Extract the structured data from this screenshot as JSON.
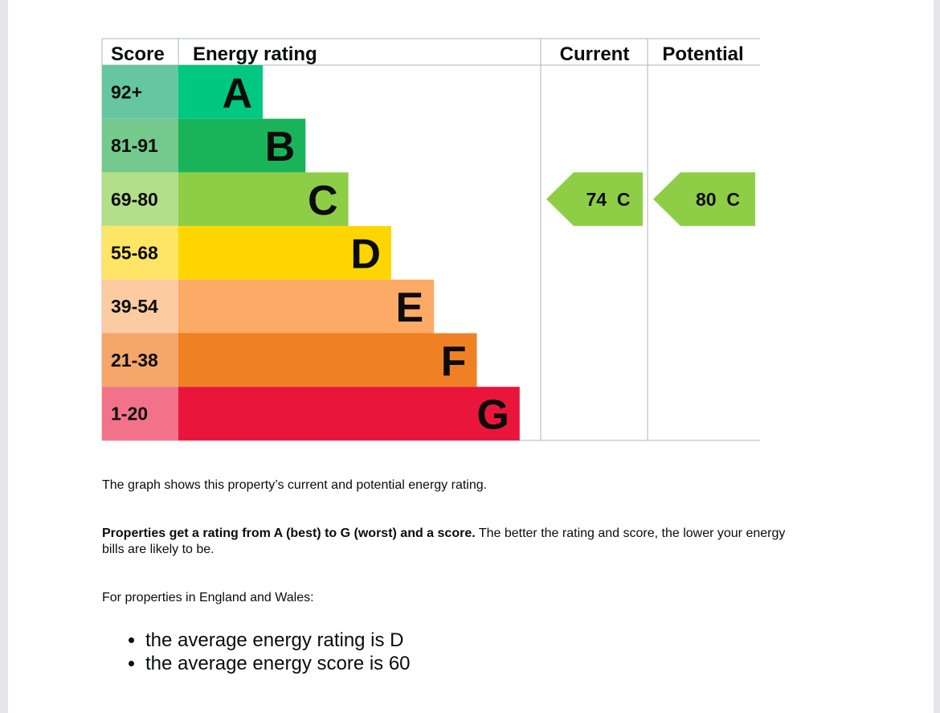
{
  "chart_data": {
    "type": "bar",
    "headers": {
      "score": "Score",
      "rating": "Energy rating",
      "current": "Current",
      "potential": "Potential"
    },
    "bands": [
      {
        "letter": "A",
        "range": "92+",
        "color": "#00c781",
        "score_bg": "#66c6a1"
      },
      {
        "letter": "B",
        "range": "81-91",
        "color": "#19b459",
        "score_bg": "#74c98d"
      },
      {
        "letter": "C",
        "range": "69-80",
        "color": "#8dce46",
        "score_bg": "#b3df8b"
      },
      {
        "letter": "D",
        "range": "55-68",
        "color": "#ffd500",
        "score_bg": "#ffe566"
      },
      {
        "letter": "E",
        "range": "39-54",
        "color": "#fcaa65",
        "score_bg": "#fdcba1"
      },
      {
        "letter": "F",
        "range": "21-38",
        "color": "#ef8023",
        "score_bg": "#f4a66b"
      },
      {
        "letter": "G",
        "range": "1-20",
        "color": "#e9153b",
        "score_bg": "#f27389"
      }
    ],
    "current": {
      "score": 74,
      "band": "C",
      "label": "74  C"
    },
    "potential": {
      "score": 80,
      "band": "C",
      "label": "80  C"
    }
  },
  "text": {
    "graph_description": "The graph shows this property’s current and potential energy rating.",
    "rating_bold": "Properties get a rating from A (best) to G (worst) and a score.",
    "rating_rest": " The better the rating and score, the lower your energy bills are likely to be.",
    "region_intro": "For properties in England and Wales:",
    "bullets": [
      "the average energy rating is D",
      "the average energy score is 60"
    ]
  }
}
